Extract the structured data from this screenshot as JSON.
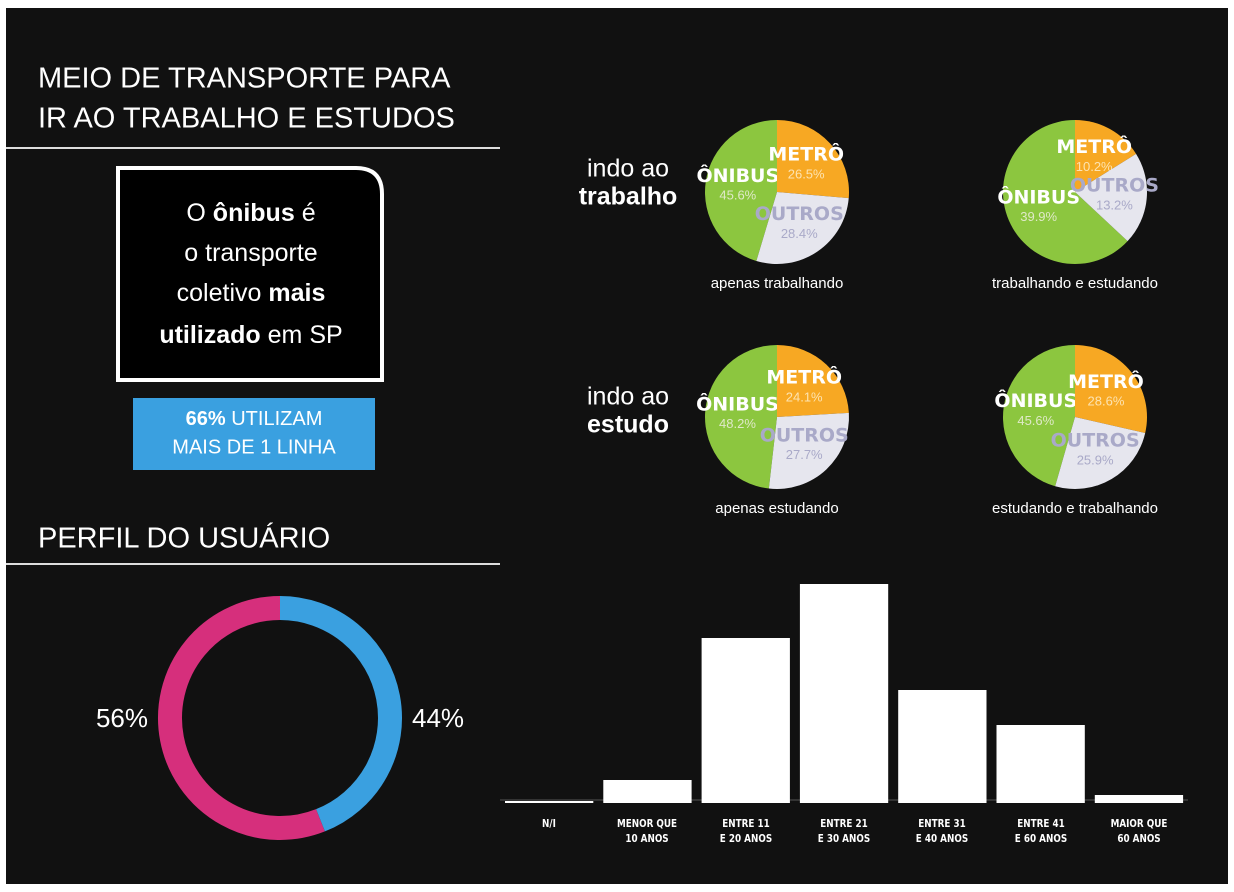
{
  "title": [
    "MEIO DE TRANSPORTE PARA",
    "IR AO TRABALHO E ESTUDOS"
  ],
  "callout": [
    [
      "O",
      "ônibus",
      "é"
    ],
    [
      "o transporte"
    ],
    [
      "coletivo",
      "mais"
    ],
    [
      "utilizado",
      "em SP"
    ]
  ],
  "badge": [
    [
      "66%",
      "UTILIZAM"
    ],
    "MAIS DE 1 LINHA"
  ],
  "rows": [
    {
      "line1": "indo ao",
      "line2": "trabalho"
    },
    {
      "line1": "indo ao",
      "line2": "estudo"
    }
  ],
  "profile_title": "PERFIL DO USUÁRIO",
  "chart_data": [
    {
      "type": "pie",
      "caption": "apenas trabalhando",
      "categories": [
        "ÔNIBUS",
        "METRÔ",
        "OUTROS"
      ],
      "values": [
        45.6,
        26.5,
        28.4
      ],
      "value_labels": [
        "45.6%",
        "26.5%",
        "28.4%"
      ],
      "colors": [
        "#8cc63f",
        "#f7a823",
        "#e6e6ee"
      ]
    },
    {
      "type": "pie",
      "caption": "trabalhando e estudando",
      "categories": [
        "ÔNIBUS",
        "METRÔ",
        "OUTROS"
      ],
      "values": [
        39.9,
        10.2,
        13.2
      ],
      "value_labels": [
        "39.9%",
        "10.2%",
        "13.2%"
      ],
      "colors": [
        "#8cc63f",
        "#f7a823",
        "#e6e6ee"
      ]
    },
    {
      "type": "pie",
      "caption": "apenas estudando",
      "categories": [
        "ÔNIBUS",
        "METRÔ",
        "OUTROS"
      ],
      "values": [
        48.2,
        24.1,
        27.7
      ],
      "value_labels": [
        "48.2%",
        "24.1%",
        "27.7%"
      ],
      "colors": [
        "#8cc63f",
        "#f7a823",
        "#e6e6ee"
      ]
    },
    {
      "type": "pie",
      "caption": "estudando e trabalhando",
      "categories": [
        "ÔNIBUS",
        "METRÔ",
        "OUTROS"
      ],
      "values": [
        45.6,
        28.6,
        25.9
      ],
      "value_labels": [
        "45.6%",
        "28.6%",
        "25.9%"
      ],
      "colors": [
        "#8cc63f",
        "#f7a823",
        "#e6e6ee"
      ]
    },
    {
      "type": "donut",
      "values": [
        56,
        44
      ],
      "value_labels": [
        "56%",
        "44%"
      ],
      "colors": [
        "#d62f7c",
        "#3aa0e0"
      ]
    },
    {
      "type": "bar",
      "categories": [
        "N/I",
        "MENOR QUE\n10 ANOS",
        "ENTRE 11\nE 20 ANOS",
        "ENTRE 21\nE 30 ANOS",
        "ENTRE 31\nE 40 ANOS",
        "ENTRE 41\nE 60 ANOS",
        "MAIOR QUE\n60 ANOS"
      ],
      "values": [
        2,
        23,
        165,
        219,
        113,
        78,
        8
      ],
      "color": "#ffffff",
      "ylim": [
        0,
        230
      ]
    }
  ]
}
